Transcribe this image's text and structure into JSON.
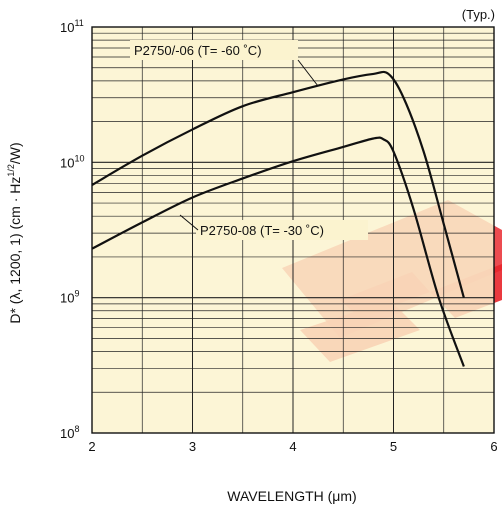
{
  "chart_data": {
    "type": "line",
    "title": "",
    "note": "(Typ.)",
    "xlabel": "WAVELENGTH (μm)",
    "ylabel_parts": [
      "D* (",
      "λ",
      ", 1200, 1) (cm · Hz",
      "1/2",
      "/W)"
    ],
    "x_scale": "linear",
    "y_scale": "log",
    "xlim": [
      2,
      6
    ],
    "ylim": [
      100000000.0,
      100000000000.0
    ],
    "x_ticks": [
      "2",
      "3",
      "4",
      "5",
      "6"
    ],
    "y_ticks": [
      {
        "value": 100000000.0,
        "base": "10",
        "exp": "8"
      },
      {
        "value": 1000000000.0,
        "base": "10",
        "exp": "9"
      },
      {
        "value": 10000000000.0,
        "base": "10",
        "exp": "10"
      },
      {
        "value": 100000000000.0,
        "base": "10",
        "exp": "11"
      }
    ],
    "grid": true,
    "series": [
      {
        "name": "P2750/-06 (T= -60 ˚C)",
        "x": [
          2.0,
          2.5,
          3.0,
          3.5,
          4.0,
          4.5,
          4.8,
          4.95,
          5.1,
          5.3,
          5.5,
          5.7
        ],
        "y": [
          6800000000.0,
          11200000000.0,
          17500000000.0,
          26000000000.0,
          33000000000.0,
          41000000000.0,
          45000000000.0,
          45000000000.0,
          30000000000.0,
          12000000000.0,
          3500000000.0,
          1000000000.0
        ]
      },
      {
        "name": "P2750-08 (T= -30 ˚C)",
        "x": [
          2.0,
          2.5,
          3.0,
          3.5,
          4.0,
          4.5,
          4.8,
          4.9,
          5.0,
          5.2,
          5.45,
          5.7
        ],
        "y": [
          2300000000.0,
          3600000000.0,
          5500000000.0,
          7600000000.0,
          10200000000.0,
          13000000000.0,
          15000000000.0,
          14800000000.0,
          12000000000.0,
          4500000000.0,
          1000000000.0,
          310000000.0
        ]
      }
    ],
    "colors": {
      "plot_background": "#fbf3cf",
      "line": "#111111",
      "grid": "#222222",
      "watermark": "#e8232a"
    }
  }
}
